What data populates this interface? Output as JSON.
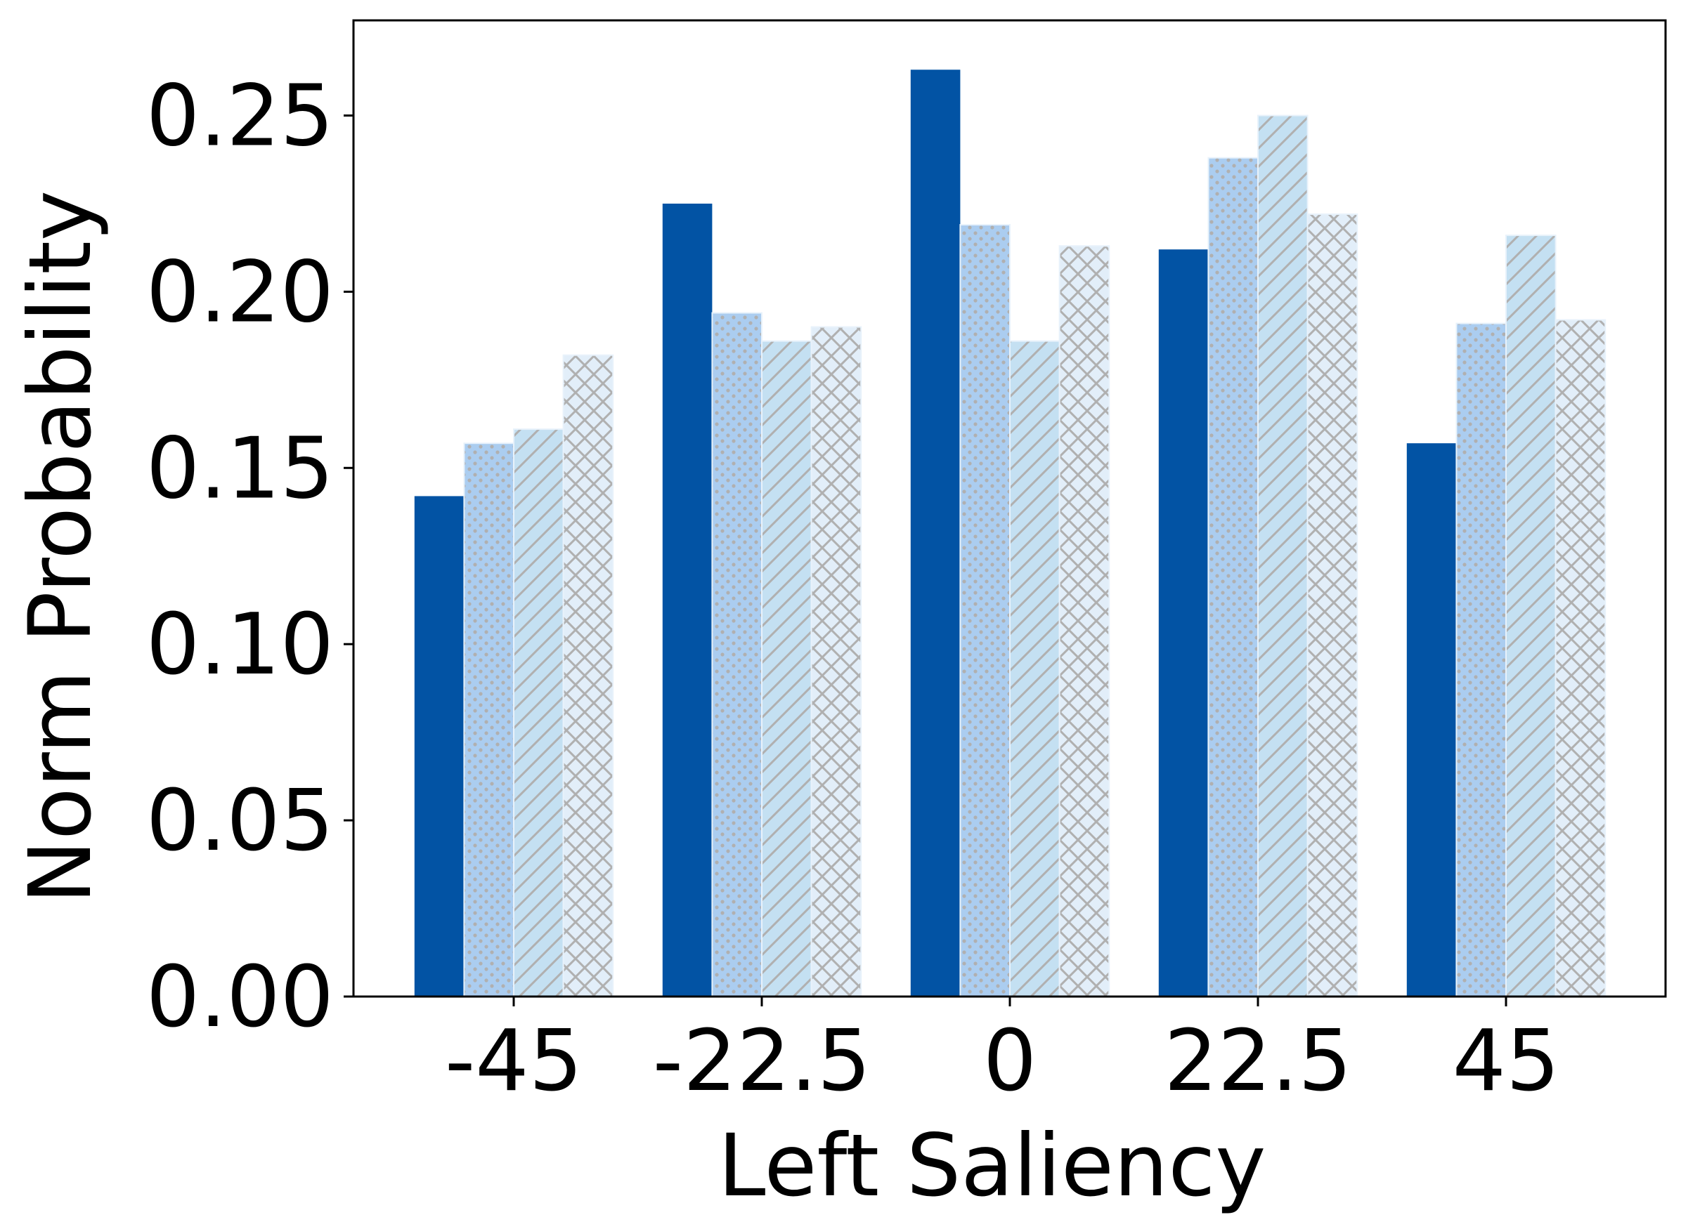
{
  "chart_data": {
    "type": "bar",
    "title": "",
    "xlabel": "Left Saliency",
    "ylabel": "Norm Probability",
    "categories": [
      "-45",
      "-22.5",
      "0",
      "22.5",
      "45"
    ],
    "ylim": [
      0,
      0.277
    ],
    "yticks": [
      "0.00",
      "0.05",
      "0.10",
      "0.15",
      "0.20",
      "0.25"
    ],
    "grid": false,
    "legend": "none",
    "series": [
      {
        "values": [
          0.142,
          0.225,
          0.263,
          0.212,
          0.157
        ],
        "color": "#0253a4",
        "hatch": "none"
      },
      {
        "values": [
          0.157,
          0.194,
          0.219,
          0.238,
          0.191
        ],
        "color": "#abcdf0",
        "hatch": "dots"
      },
      {
        "values": [
          0.161,
          0.186,
          0.186,
          0.25,
          0.216
        ],
        "color": "#c4e0f2",
        "hatch": "diagonal"
      },
      {
        "values": [
          0.182,
          0.19,
          0.213,
          0.222,
          0.192
        ],
        "color": "#e2eef9",
        "hatch": "crosshatch"
      }
    ],
    "hatch_color": "#b0b0b0",
    "edge_color": "#e8f2fb",
    "axis_color": "#000000"
  }
}
